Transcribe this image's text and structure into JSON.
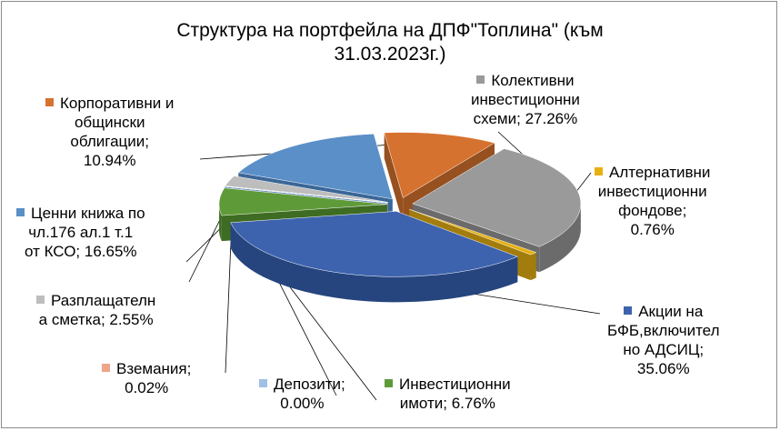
{
  "chart_data": {
    "type": "pie",
    "title_lines": [
      "Структура  на  портфейла на ДПФ\"Топлина\" (към",
      "31.03.2023г.)"
    ],
    "slices": [
      {
        "key": "collective",
        "label_lines": [
          "Колективни",
          "инвестиционни",
          "схеми;  27.26%"
        ],
        "value": 27.26,
        "color": "#9a9a9a",
        "side": "#6b6b6b"
      },
      {
        "key": "alternative",
        "label_lines": [
          "Алтернативни",
          "инвестиционни",
          "фондове;",
          "0.76%"
        ],
        "value": 0.76,
        "color": "#e6b012",
        "side": "#a27c0c"
      },
      {
        "key": "shares",
        "label_lines": [
          "Акции  на",
          "БФБ,включител",
          "но АДСИЦ;",
          "35.06%"
        ],
        "value": 35.06,
        "color": "#3d63ae",
        "side": "#26457f"
      },
      {
        "key": "real_estate",
        "label_lines": [
          "Инвестиционни",
          "имоти;  6.76%"
        ],
        "value": 6.76,
        "color": "#5f9a38",
        "side": "#3f6c23"
      },
      {
        "key": "deposits",
        "label_lines": [
          "Депозити;",
          "0.00%"
        ],
        "value": 0.0,
        "color": "#9fc0e6",
        "side": "#7095c0"
      },
      {
        "key": "receivables",
        "label_lines": [
          "Вземания;",
          "0.02%"
        ],
        "value": 0.02,
        "color": "#eea58a",
        "side": "#b87460"
      },
      {
        "key": "cash",
        "label_lines": [
          "Разплащателн",
          "а сметка;  2.55%"
        ],
        "value": 2.55,
        "color": "#bdbdbd",
        "side": "#8a8a8a"
      },
      {
        "key": "securities",
        "label_lines": [
          "Ценни книжа по",
          "чл.176  ал.1  т.1",
          "от КСО;  16.65%"
        ],
        "value": 16.65,
        "color": "#5a8fc8",
        "side": "#3b6698"
      },
      {
        "key": "bonds",
        "label_lines": [
          "Корпоративни  и",
          "общински",
          "облигации;",
          "10.94%"
        ],
        "value": 10.94,
        "color": "#d6722f",
        "side": "#97501f"
      }
    ]
  }
}
